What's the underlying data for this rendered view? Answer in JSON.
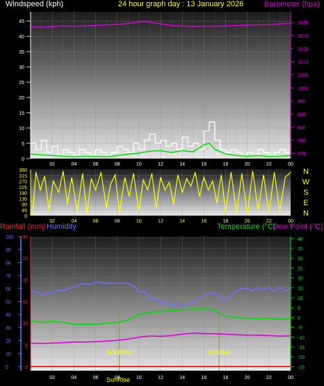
{
  "header": {
    "left_title": "Windspeed (kph)",
    "center_title": "24 hour graph day : 13 January 2026",
    "right_title": "Barometer (hpa)"
  },
  "colors": {
    "background": "#000000",
    "wind_speed": "#ffffff",
    "wind_avg": "#00dd00",
    "barometer": "#dd00dd",
    "wind_direction": "#ffff00",
    "rainfall": "#ff2020",
    "humidity": "#7070ff",
    "temperature": "#00dd00",
    "dew_point": "#dd00dd",
    "sun_line": "#999900",
    "grid": "#8a8a8a",
    "axis_yellow": "#ffff00"
  },
  "compass_labels": [
    "N",
    "W",
    "S",
    "E",
    "N"
  ],
  "bottom_header": {
    "rainfall_title": "Rainfall (mm)",
    "humidity_title": "Humidity",
    "temperature_title": "Temperature (°C)",
    "dewpoint_title": "Dew Point (°C)"
  },
  "annotations": {
    "sunrise_label": "SunRise",
    "sunset_label": "SunSet",
    "noon_label": "SunRise"
  },
  "chart_data": [
    {
      "type": "line",
      "name": "wind-barometer",
      "x_tick_labels": [
        "02",
        "04",
        "06",
        "08",
        "10",
        "12",
        "14",
        "16",
        "18",
        "20",
        "22",
        "00"
      ],
      "x_tick_hours": [
        2,
        4,
        6,
        8,
        10,
        12,
        14,
        16,
        18,
        20,
        22,
        24
      ],
      "xlim": [
        0,
        24
      ],
      "y_left_label": "Windspeed (kph)",
      "y_left_ticks": [
        0,
        5,
        10,
        15,
        20,
        25,
        30,
        35,
        40,
        45
      ],
      "y_left_lim": [
        0,
        48
      ],
      "y_right_label": "Barometer (hpa)",
      "y_right_ticks": [
        975,
        980,
        985,
        990,
        995,
        1000,
        1005,
        1010,
        1015,
        1020,
        1025
      ],
      "y_right_lim": [
        973,
        1029
      ],
      "series": [
        {
          "key": "barometer",
          "axis": "right",
          "x": [
            0,
            1,
            2,
            3,
            4,
            5,
            6,
            7,
            8,
            9,
            10,
            10.5,
            11,
            12,
            13,
            14,
            15,
            16,
            17,
            18,
            19,
            20,
            21,
            22,
            23,
            24
          ],
          "y": [
            1023.3,
            1023.1,
            1023.4,
            1023.6,
            1023.5,
            1023.6,
            1023.8,
            1024.0,
            1024.2,
            1024.6,
            1025.1,
            1025.4,
            1025.0,
            1024.4,
            1023.8,
            1023.6,
            1023.4,
            1023.5,
            1023.5,
            1023.7,
            1023.8,
            1023.9,
            1024.0,
            1024.1,
            1024.4,
            1024.6
          ]
        },
        {
          "key": "wind_speed",
          "axis": "left",
          "x": [
            0,
            0.5,
            1,
            1.5,
            2,
            2.5,
            3,
            3.5,
            4,
            4.5,
            5,
            5.5,
            6,
            6.5,
            7,
            7.5,
            8,
            8.5,
            9,
            9.5,
            10,
            10.5,
            11,
            11.5,
            12,
            12.5,
            13,
            13.5,
            14,
            14.5,
            15,
            15.5,
            16,
            16.5,
            17,
            17.5,
            18,
            18.5,
            19,
            19.5,
            20,
            20.5,
            21,
            21.5,
            22,
            22.5,
            23,
            23.5,
            24
          ],
          "y": [
            5,
            3,
            6,
            2,
            4,
            1,
            3,
            2,
            1,
            3,
            2,
            1,
            3,
            2,
            1,
            2,
            4,
            3,
            2,
            5,
            3,
            6,
            8,
            5,
            6,
            4,
            5,
            3,
            7,
            4,
            5,
            3,
            9,
            12,
            6,
            3,
            2,
            3,
            2,
            1,
            2,
            1,
            3,
            2,
            1,
            2,
            3,
            2,
            5
          ]
        },
        {
          "key": "wind_avg",
          "axis": "left",
          "x": [
            0,
            1,
            2,
            3,
            4,
            5,
            6,
            7,
            8,
            9,
            10,
            11,
            12,
            13,
            14,
            15,
            16,
            16.5,
            17,
            18,
            19,
            20,
            21,
            22,
            23,
            24
          ],
          "y": [
            1.5,
            1.2,
            1.0,
            0.8,
            0.6,
            0.8,
            0.7,
            0.6,
            1.0,
            1.4,
            1.8,
            2.4,
            2.6,
            2.0,
            2.6,
            2.2,
            4.5,
            5.0,
            3.0,
            1.5,
            1.0,
            0.8,
            1.0,
            0.7,
            0.8,
            1.0
          ]
        }
      ]
    },
    {
      "type": "line",
      "name": "wind-direction",
      "x_tick_labels": [
        "02",
        "04",
        "06",
        "08",
        "10",
        "12",
        "14",
        "16",
        "18",
        "20",
        "22",
        "00"
      ],
      "xlim": [
        0,
        24
      ],
      "y_ticks": [
        0,
        45,
        90,
        135,
        180,
        225,
        270,
        315,
        360
      ],
      "ylim": [
        0,
        360
      ],
      "series": [
        {
          "key": "wind_direction",
          "x": [
            0.2,
            0.5,
            0.9,
            1.3,
            1.7,
            2.1,
            2.6,
            3.0,
            3.4,
            3.8,
            4.3,
            4.8,
            5.2,
            5.6,
            6.0,
            6.5,
            7.0,
            7.4,
            7.8,
            8.2,
            8.7,
            9.1,
            9.5,
            10.0,
            10.4,
            10.8,
            11.2,
            11.6,
            12.0,
            12.4,
            12.8,
            13.2,
            13.6,
            14.0,
            14.4,
            14.8,
            15.2,
            15.6,
            16.0,
            16.4,
            16.8,
            17.2,
            17.6,
            18.0,
            18.5,
            19.0,
            19.5,
            20.0,
            20.5,
            21.0,
            21.5,
            22.0,
            22.5,
            23.0,
            23.5,
            24.0
          ],
          "y": [
            20,
            340,
            200,
            310,
            40,
            270,
            180,
            350,
            90,
            300,
            30,
            330,
            10,
            290,
            200,
            340,
            60,
            250,
            320,
            20,
            300,
            150,
            330,
            40,
            280,
            200,
            330,
            60,
            300,
            200,
            260,
            90,
            320,
            180,
            290,
            230,
            340,
            150,
            300,
            200,
            270,
            100,
            320,
            30,
            340,
            20,
            330,
            10,
            350,
            40,
            320,
            20,
            340,
            30,
            300,
            340
          ]
        }
      ]
    },
    {
      "type": "line",
      "name": "temperature-humidity",
      "x_tick_labels": [
        "02",
        "04",
        "06",
        "08",
        "10",
        "12",
        "14",
        "16",
        "18",
        "20",
        "22",
        "00"
      ],
      "xlim": [
        0,
        24
      ],
      "y_humidity_label": "Humidity",
      "y_humidity_ticks": [
        0,
        10,
        20,
        30,
        40,
        50,
        60,
        70,
        80,
        90,
        100
      ],
      "y_rain_label": "Rainfall (mm)",
      "y_rain_ticks": [
        0,
        5,
        10,
        15,
        20,
        25,
        30
      ],
      "y_temp_label": "Temperature (°C)",
      "y_temp_ticks": [
        -25,
        -20,
        -15,
        -10,
        -5,
        0,
        5,
        10,
        15,
        20,
        25,
        30,
        35,
        40
      ],
      "y_temp_lim": [
        -27,
        41
      ],
      "sunrise_hour": 8.2,
      "sunset_hour": 17.4,
      "series": [
        {
          "key": "humidity",
          "axis": "humidity",
          "x": [
            0,
            0.5,
            1,
            1.5,
            2,
            2.5,
            3,
            3.5,
            4,
            4.5,
            5,
            5.5,
            6,
            7,
            8,
            9,
            9.5,
            10,
            10.5,
            11,
            11.5,
            12,
            12.5,
            13,
            13.5,
            14,
            14.5,
            15,
            15.5,
            16,
            16.5,
            17,
            17.5,
            18,
            18.5,
            19,
            19.5,
            20,
            20.5,
            21,
            21.5,
            22,
            22.5,
            23,
            23.5,
            24
          ],
          "y": [
            57,
            58,
            55,
            57,
            56,
            59,
            58,
            60,
            61,
            63,
            64,
            63,
            65,
            64,
            64,
            64,
            62,
            57,
            58,
            51,
            53,
            48,
            50,
            46,
            49,
            46,
            48,
            49,
            51,
            55,
            56,
            57,
            54,
            51,
            55,
            58,
            60,
            60,
            58,
            61,
            59,
            61,
            58,
            61,
            58,
            60
          ]
        },
        {
          "key": "rainfall",
          "axis": "rain",
          "x": [
            0,
            24
          ],
          "y": [
            0,
            0
          ]
        },
        {
          "key": "temperature",
          "axis": "temp",
          "x": [
            0,
            1,
            2,
            3,
            4,
            5,
            6,
            7,
            8,
            9,
            9.5,
            10,
            11,
            12,
            13,
            14,
            15,
            16,
            16.5,
            17,
            17.5,
            18,
            19,
            20,
            21,
            22,
            23,
            24
          ],
          "y": [
            -2,
            -2.5,
            -2,
            -2.5,
            -3.5,
            -3.5,
            -3.5,
            -3,
            -2.5,
            -1.5,
            0,
            1.5,
            2.5,
            3,
            3.5,
            3.8,
            4,
            4.2,
            4.6,
            3.5,
            2,
            0.5,
            0,
            -0.5,
            -0.8,
            -0.5,
            -1,
            -0.8
          ]
        },
        {
          "key": "dew_point",
          "axis": "temp",
          "x": [
            0,
            1,
            2,
            3,
            4,
            5,
            6,
            7,
            8,
            9,
            10,
            11,
            12,
            13,
            14,
            15,
            16,
            17,
            18,
            19,
            20,
            21,
            22,
            23,
            24
          ],
          "y": [
            -13,
            -13.2,
            -13,
            -12.8,
            -12.5,
            -12.5,
            -12.3,
            -12,
            -11.6,
            -11,
            -10,
            -9.4,
            -9.6,
            -9.2,
            -8.5,
            -8,
            -8.2,
            -8.3,
            -8.5,
            -8.8,
            -9,
            -9,
            -9.2,
            -9.5,
            -9.3
          ]
        }
      ]
    }
  ]
}
